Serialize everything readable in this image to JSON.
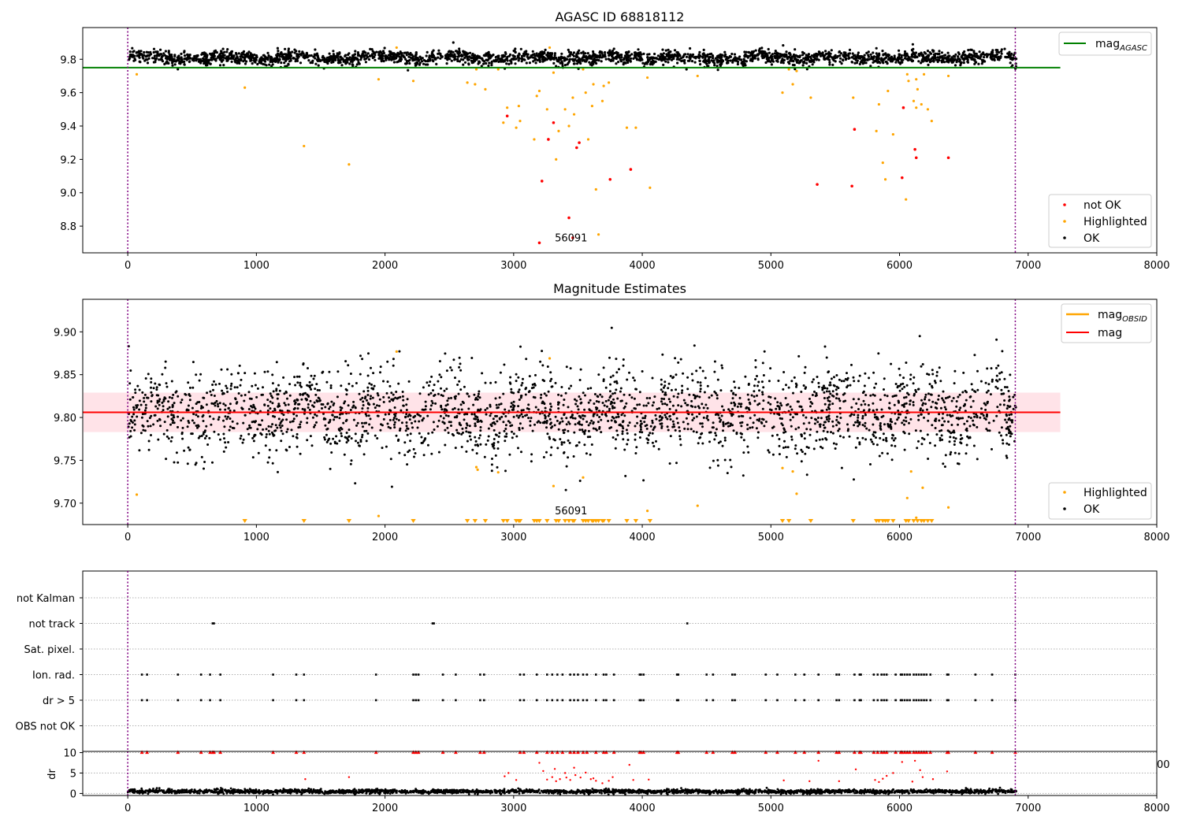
{
  "chart_data": [
    {
      "type": "scatter",
      "title": "AGASC ID 68818112",
      "xlim": [
        -350,
        8000
      ],
      "ylim": [
        8.64,
        9.99
      ],
      "xticks": [
        0,
        1000,
        2000,
        3000,
        4000,
        5000,
        6000,
        7000,
        8000
      ],
      "yticks": [
        8.8,
        9.0,
        9.2,
        9.4,
        9.6,
        9.8
      ],
      "grid": false,
      "vlines": [
        0,
        6900
      ],
      "hline": {
        "name": "mag",
        "sub": "AGASC",
        "value": 9.75,
        "x_range": [
          0,
          7250
        ],
        "color": "#008000"
      },
      "annotation": {
        "text": "56091",
        "x": 3320,
        "y": 8.7
      },
      "legend_lines": {
        "placement": "top-right"
      },
      "legend_points": {
        "placement": "lower-right",
        "entries": [
          "not OK",
          "Highlighted",
          "OK"
        ]
      },
      "ok_band": {
        "name": "OK",
        "x_range": [
          0,
          6910
        ],
        "y_mean": 9.81,
        "y_spread": 0.02,
        "color": "#000000"
      },
      "series": [
        {
          "name": "Highlighted",
          "color": "#ffa500",
          "points": [
            [
              70,
              9.71
            ],
            [
              910,
              9.63
            ],
            [
              1370,
              9.28
            ],
            [
              1720,
              9.17
            ],
            [
              1950,
              9.68
            ],
            [
              2090,
              9.87
            ],
            [
              2220,
              9.67
            ],
            [
              2640,
              9.66
            ],
            [
              2700,
              9.65
            ],
            [
              2710,
              9.74
            ],
            [
              2780,
              9.62
            ],
            [
              2880,
              9.74
            ],
            [
              2920,
              9.42
            ],
            [
              2950,
              9.51
            ],
            [
              3020,
              9.39
            ],
            [
              3050,
              9.43
            ],
            [
              3040,
              9.52
            ],
            [
              3160,
              9.32
            ],
            [
              3180,
              9.58
            ],
            [
              3200,
              9.61
            ],
            [
              3260,
              9.5
            ],
            [
              3280,
              9.87
            ],
            [
              3310,
              9.72
            ],
            [
              3330,
              9.2
            ],
            [
              3350,
              9.37
            ],
            [
              3400,
              9.5
            ],
            [
              3430,
              9.4
            ],
            [
              3460,
              9.57
            ],
            [
              3470,
              9.47
            ],
            [
              3540,
              9.74
            ],
            [
              3560,
              9.6
            ],
            [
              3580,
              9.32
            ],
            [
              3610,
              9.52
            ],
            [
              3620,
              9.65
            ],
            [
              3640,
              9.02
            ],
            [
              3660,
              8.75
            ],
            [
              3690,
              9.55
            ],
            [
              3700,
              9.64
            ],
            [
              3740,
              9.66
            ],
            [
              3880,
              9.39
            ],
            [
              3950,
              9.39
            ],
            [
              4040,
              9.69
            ],
            [
              4060,
              9.03
            ],
            [
              4430,
              9.7
            ],
            [
              5090,
              9.6
            ],
            [
              5140,
              9.74
            ],
            [
              5170,
              9.65
            ],
            [
              5200,
              9.73
            ],
            [
              5310,
              9.57
            ],
            [
              5640,
              9.57
            ],
            [
              5820,
              9.37
            ],
            [
              5840,
              9.53
            ],
            [
              5870,
              9.18
            ],
            [
              5890,
              9.08
            ],
            [
              5910,
              9.61
            ],
            [
              5950,
              9.35
            ],
            [
              6050,
              8.96
            ],
            [
              6060,
              9.71
            ],
            [
              6070,
              9.67
            ],
            [
              6110,
              9.55
            ],
            [
              6130,
              9.68
            ],
            [
              6130,
              9.51
            ],
            [
              6140,
              9.62
            ],
            [
              6170,
              9.53
            ],
            [
              6190,
              9.71
            ],
            [
              6220,
              9.5
            ],
            [
              6250,
              9.43
            ],
            [
              6380,
              9.7
            ]
          ]
        },
        {
          "name": "not OK",
          "color": "#ff0000",
          "points": [
            [
              2950,
              9.46
            ],
            [
              3200,
              8.7
            ],
            [
              3220,
              9.07
            ],
            [
              3270,
              9.32
            ],
            [
              3310,
              9.42
            ],
            [
              3430,
              8.85
            ],
            [
              3460,
              8.73
            ],
            [
              3490,
              9.27
            ],
            [
              3510,
              9.3
            ],
            [
              3750,
              9.08
            ],
            [
              3910,
              9.14
            ],
            [
              5360,
              9.05
            ],
            [
              5630,
              9.04
            ],
            [
              5650,
              9.38
            ],
            [
              6030,
              9.51
            ],
            [
              6020,
              9.09
            ],
            [
              6120,
              9.26
            ],
            [
              6130,
              9.21
            ],
            [
              6380,
              9.21
            ]
          ]
        }
      ]
    },
    {
      "type": "scatter",
      "title": "Magnitude Estimates",
      "xlim": [
        -350,
        8000
      ],
      "ylim": [
        9.675,
        9.938
      ],
      "xticks": [
        0,
        1000,
        2000,
        3000,
        4000,
        5000,
        6000,
        7000,
        8000
      ],
      "yticks": [
        9.7,
        9.75,
        9.8,
        9.85,
        9.9
      ],
      "grid": false,
      "vlines": [
        0,
        6900
      ],
      "hline": {
        "name": "mag",
        "value": 9.806,
        "color": "#ff0000"
      },
      "band": {
        "low": 9.783,
        "high": 9.829,
        "x_range": [
          0,
          7250
        ],
        "color": "#ffc0cb"
      },
      "obsid_line": {
        "name": "mag",
        "sub": "OBSID",
        "color": "#ffa500"
      },
      "annotation": {
        "text": "56091",
        "x": 3320,
        "y": 9.685
      },
      "legend_lines": {
        "placement": "top-right"
      },
      "legend_points": {
        "placement": "lower-right",
        "entries": [
          "Highlighted",
          "OK"
        ]
      },
      "ok_band": {
        "name": "OK",
        "x_range": [
          0,
          6910
        ],
        "y_mean": 9.806,
        "y_spread": 0.025,
        "color": "#000000"
      },
      "series": [
        {
          "name": "Highlighted",
          "color": "#ffa500",
          "points": [
            [
              70,
              9.71
            ],
            [
              1950,
              9.685
            ],
            [
              2090,
              9.877
            ],
            [
              2710,
              9.742
            ],
            [
              2720,
              9.739
            ],
            [
              2880,
              9.736
            ],
            [
              3280,
              9.869
            ],
            [
              3310,
              9.72
            ],
            [
              3540,
              9.73
            ],
            [
              4040,
              9.691
            ],
            [
              4430,
              9.697
            ],
            [
              5090,
              9.741
            ],
            [
              5170,
              9.737
            ],
            [
              5200,
              9.711
            ],
            [
              6060,
              9.706
            ],
            [
              6090,
              9.737
            ],
            [
              6130,
              9.683
            ],
            [
              6180,
              9.718
            ],
            [
              6380,
              9.695
            ]
          ]
        },
        {
          "name": "Highlighted (below range)",
          "color": "#ffa500",
          "x": [
            910,
            1370,
            1720,
            2220,
            2640,
            2700,
            2780,
            2920,
            2950,
            3020,
            3040,
            3050,
            3160,
            3180,
            3200,
            3260,
            3330,
            3350,
            3400,
            3430,
            3460,
            3470,
            3540,
            3560,
            3580,
            3610,
            3620,
            3640,
            3660,
            3690,
            3700,
            3740,
            3880,
            3950,
            4060,
            5090,
            5140,
            5310,
            5640,
            5820,
            5840,
            5870,
            5890,
            5910,
            5950,
            6050,
            6070,
            6110,
            6140,
            6170,
            6190,
            6220,
            6250
          ]
        }
      ]
    },
    {
      "type": "scatter",
      "title": "",
      "xlim": [
        -350,
        8000
      ],
      "vlines": [
        0,
        6900
      ],
      "categories": [
        "not Kalman",
        "not track",
        "Sat. pixel.",
        "Ion. rad.",
        "dr > 5",
        "OBS not OK"
      ],
      "series": [
        {
          "name": "not track",
          "x": [
            660,
            670,
            2370,
            2380,
            4350
          ]
        },
        {
          "name": "Ion. rad.",
          "x": [
            110,
            150,
            390,
            570,
            640,
            720,
            1130,
            1310,
            1370,
            1930,
            2220,
            2240,
            2260,
            2450,
            2550,
            2740,
            2770,
            3050,
            3080,
            3180,
            3260,
            3300,
            3340,
            3380,
            3440,
            3470,
            3500,
            3540,
            3570,
            3640,
            3700,
            3720,
            3780,
            3980,
            3990,
            4010,
            4270,
            4280,
            4500,
            4550,
            4700,
            4720,
            4960,
            5050,
            5190,
            5260,
            5370,
            5510,
            5530,
            5650,
            5690,
            5700,
            5800,
            5830,
            5860,
            5880,
            5900,
            5970,
            6010,
            6020,
            6040,
            6060,
            6080,
            6110,
            6130,
            6150,
            6170,
            6190,
            6210,
            6240,
            6370,
            6380,
            6590,
            6720,
            6900
          ]
        },
        {
          "name": "dr > 5",
          "x": [
            110,
            150,
            390,
            570,
            640,
            720,
            1130,
            1310,
            1370,
            1930,
            2220,
            2240,
            2260,
            2450,
            2550,
            2740,
            2770,
            3050,
            3080,
            3180,
            3260,
            3300,
            3340,
            3380,
            3440,
            3470,
            3500,
            3540,
            3570,
            3640,
            3700,
            3720,
            3780,
            3980,
            3990,
            4010,
            4270,
            4280,
            4500,
            4550,
            4700,
            4720,
            4960,
            5050,
            5190,
            5260,
            5370,
            5510,
            5530,
            5650,
            5690,
            5700,
            5800,
            5830,
            5860,
            5880,
            5900,
            5970,
            6010,
            6020,
            6040,
            6060,
            6080,
            6110,
            6130,
            6150,
            6170,
            6190,
            6210,
            6240,
            6370,
            6380,
            6590,
            6720,
            6900
          ]
        }
      ]
    },
    {
      "type": "scatter",
      "title": "",
      "xlabel": "",
      "ylabel": "dr",
      "xlim": [
        -350,
        8000
      ],
      "ylim": [
        -0.5,
        10.3
      ],
      "xticks": [
        0,
        1000,
        2000,
        3000,
        4000,
        5000,
        6000,
        7000,
        8000
      ],
      "yticks": [
        0,
        5,
        10
      ],
      "grid": true,
      "vlines": [
        0,
        6900
      ],
      "clipped_label": "00",
      "ok_band": {
        "name": "OK",
        "x_range": [
          0,
          6910
        ],
        "y_mean": 0.5,
        "y_spread": 0.25,
        "color": "#000000"
      },
      "series": [
        {
          "name": "dr",
          "color": "#ff0000",
          "points": [
            [
              1380,
              3.5
            ],
            [
              1720,
              4.0
            ],
            [
              2930,
              4.2
            ],
            [
              2960,
              5.0
            ],
            [
              3020,
              3.3
            ],
            [
              3200,
              7.5
            ],
            [
              3230,
              5.5
            ],
            [
              3260,
              3.4
            ],
            [
              3300,
              4.0
            ],
            [
              3320,
              6.0
            ],
            [
              3330,
              3.0
            ],
            [
              3360,
              3.5
            ],
            [
              3400,
              5.0
            ],
            [
              3410,
              3.9
            ],
            [
              3440,
              3.3
            ],
            [
              3470,
              6.3
            ],
            [
              3480,
              4.5
            ],
            [
              3520,
              3.9
            ],
            [
              3560,
              5.1
            ],
            [
              3600,
              3.5
            ],
            [
              3620,
              3.7
            ],
            [
              3640,
              3.1
            ],
            [
              3690,
              2.5
            ],
            [
              3740,
              3.1
            ],
            [
              3770,
              4.0
            ],
            [
              3900,
              7.0
            ],
            [
              3930,
              3.3
            ],
            [
              4050,
              3.4
            ],
            [
              5100,
              3.2
            ],
            [
              5300,
              3.0
            ],
            [
              5370,
              8.0
            ],
            [
              5530,
              3.0
            ],
            [
              5660,
              5.9
            ],
            [
              5810,
              3.3
            ],
            [
              5840,
              2.8
            ],
            [
              5870,
              3.6
            ],
            [
              5900,
              4.3
            ],
            [
              5950,
              5.0
            ],
            [
              6020,
              7.7
            ],
            [
              6100,
              2.9
            ],
            [
              6120,
              8.0
            ],
            [
              6160,
              5.7
            ],
            [
              6180,
              4.0
            ],
            [
              6260,
              3.5
            ],
            [
              6370,
              5.4
            ]
          ]
        },
        {
          "name": "dr = 10",
          "color": "#ff0000",
          "x": [
            110,
            150,
            390,
            570,
            640,
            660,
            670,
            720,
            1130,
            1310,
            1370,
            1930,
            2220,
            2240,
            2260,
            2450,
            2550,
            2740,
            2770,
            3050,
            3080,
            3180,
            3260,
            3300,
            3340,
            3380,
            3440,
            3470,
            3500,
            3540,
            3570,
            3640,
            3700,
            3720,
            3780,
            3980,
            3990,
            4010,
            4270,
            4280,
            4500,
            4550,
            4700,
            4720,
            4960,
            5050,
            5190,
            5260,
            5370,
            5510,
            5530,
            5650,
            5690,
            5700,
            5800,
            5830,
            5860,
            5880,
            5900,
            5970,
            6010,
            6020,
            6040,
            6060,
            6080,
            6110,
            6130,
            6150,
            6170,
            6190,
            6210,
            6240,
            6370,
            6380,
            6590,
            6720,
            6900
          ]
        }
      ]
    }
  ]
}
